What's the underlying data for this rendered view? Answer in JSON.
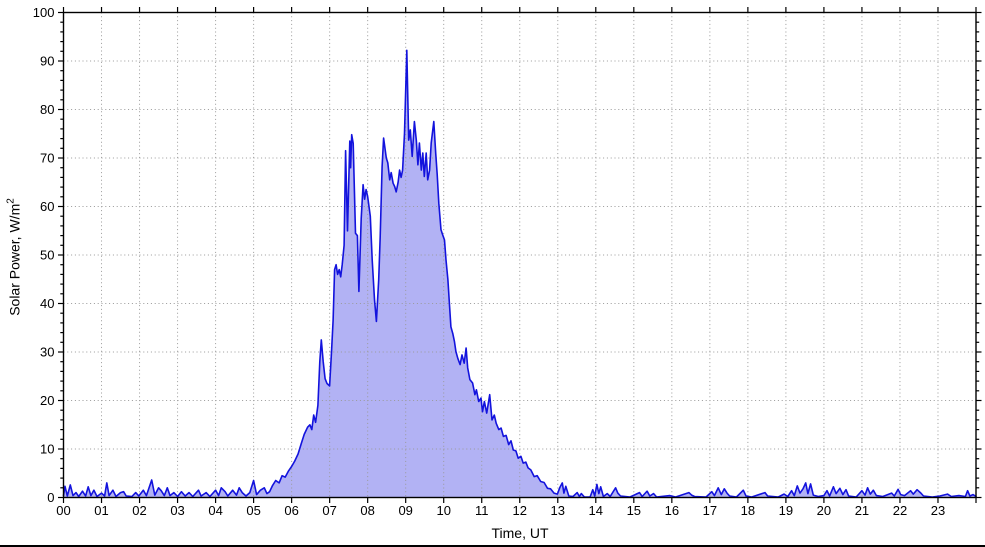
{
  "page": {
    "background_color": "#ffffff",
    "bottom_edge_line_color": "#000000"
  },
  "chart_data": {
    "type": "area",
    "title": "",
    "xlabel": "Time, UT",
    "ylabel": "Solar Power, W/m²",
    "ylabel_parts": {
      "base": "Solar Power, W/m",
      "sup": "2"
    },
    "xlim": [
      0,
      24
    ],
    "ylim": [
      0,
      100
    ],
    "x_tick_values": [
      0,
      1,
      2,
      3,
      4,
      5,
      6,
      7,
      8,
      9,
      10,
      11,
      12,
      13,
      14,
      15,
      16,
      17,
      18,
      19,
      20,
      21,
      22,
      23
    ],
    "x_tick_labels": [
      "00",
      "01",
      "02",
      "03",
      "04",
      "05",
      "06",
      "07",
      "08",
      "09",
      "10",
      "11",
      "12",
      "13",
      "14",
      "15",
      "16",
      "17",
      "18",
      "19",
      "20",
      "21",
      "22",
      "23"
    ],
    "y_tick_values": [
      0,
      10,
      20,
      30,
      40,
      50,
      60,
      70,
      80,
      90,
      100
    ],
    "y_tick_labels": [
      "0",
      "10",
      "20",
      "30",
      "40",
      "50",
      "60",
      "70",
      "80",
      "90",
      "100"
    ],
    "y_minor_step": 2,
    "grid": {
      "style": "dotted",
      "major_only": true,
      "color": "#9a9a9a"
    },
    "legend": "none",
    "line_color": "#1313dd",
    "fill_color": "#b2b2f4",
    "axis_color": "#000000",
    "series": [
      {
        "name": "solar power, W/m2",
        "points": [
          [
            0.0,
            0.4
          ],
          [
            0.04,
            2.3
          ],
          [
            0.1,
            0.3
          ],
          [
            0.18,
            2.6
          ],
          [
            0.25,
            0.4
          ],
          [
            0.33,
            1.0
          ],
          [
            0.4,
            0.2
          ],
          [
            0.5,
            1.3
          ],
          [
            0.58,
            0.3
          ],
          [
            0.65,
            2.2
          ],
          [
            0.72,
            0.4
          ],
          [
            0.8,
            1.5
          ],
          [
            0.88,
            0.2
          ],
          [
            1.0,
            0.9
          ],
          [
            1.08,
            0.3
          ],
          [
            1.14,
            3.0
          ],
          [
            1.2,
            0.4
          ],
          [
            1.3,
            1.5
          ],
          [
            1.38,
            0.2
          ],
          [
            1.5,
            1.0
          ],
          [
            1.58,
            1.2
          ],
          [
            1.65,
            0.3
          ],
          [
            1.8,
            0.2
          ],
          [
            1.9,
            1.0
          ],
          [
            1.98,
            0.3
          ],
          [
            2.1,
            1.5
          ],
          [
            2.18,
            0.4
          ],
          [
            2.32,
            3.6
          ],
          [
            2.4,
            0.5
          ],
          [
            2.5,
            2.0
          ],
          [
            2.57,
            1.4
          ],
          [
            2.65,
            0.4
          ],
          [
            2.73,
            2.0
          ],
          [
            2.8,
            0.4
          ],
          [
            2.9,
            1.0
          ],
          [
            3.0,
            0.2
          ],
          [
            3.1,
            1.2
          ],
          [
            3.2,
            0.3
          ],
          [
            3.3,
            1.0
          ],
          [
            3.4,
            0.2
          ],
          [
            3.55,
            1.5
          ],
          [
            3.62,
            0.3
          ],
          [
            3.75,
            1.0
          ],
          [
            3.85,
            0.2
          ],
          [
            4.0,
            1.5
          ],
          [
            4.08,
            0.4
          ],
          [
            4.15,
            2.0
          ],
          [
            4.25,
            1.2
          ],
          [
            4.32,
            0.3
          ],
          [
            4.45,
            1.5
          ],
          [
            4.55,
            0.5
          ],
          [
            4.62,
            2.0
          ],
          [
            4.7,
            1.0
          ],
          [
            4.8,
            0.3
          ],
          [
            4.9,
            1.0
          ],
          [
            5.0,
            3.5
          ],
          [
            5.08,
            0.6
          ],
          [
            5.18,
            1.5
          ],
          [
            5.28,
            2.0
          ],
          [
            5.35,
            0.8
          ],
          [
            5.42,
            1.2
          ],
          [
            5.5,
            2.5
          ],
          [
            5.58,
            3.5
          ],
          [
            5.67,
            3.0
          ],
          [
            5.75,
            4.5
          ],
          [
            5.83,
            4.2
          ],
          [
            5.92,
            5.5
          ],
          [
            6.0,
            6.4
          ],
          [
            6.08,
            7.5
          ],
          [
            6.17,
            9.0
          ],
          [
            6.25,
            11.0
          ],
          [
            6.33,
            13.0
          ],
          [
            6.42,
            14.5
          ],
          [
            6.48,
            15.0
          ],
          [
            6.53,
            14.0
          ],
          [
            6.58,
            17.0
          ],
          [
            6.63,
            15.5
          ],
          [
            6.69,
            19.0
          ],
          [
            6.74,
            28.0
          ],
          [
            6.78,
            32.5
          ],
          [
            6.83,
            28.0
          ],
          [
            6.88,
            24.5
          ],
          [
            6.93,
            23.5
          ],
          [
            7.0,
            23.0
          ],
          [
            7.05,
            30.0
          ],
          [
            7.09,
            36.5
          ],
          [
            7.13,
            47.0
          ],
          [
            7.17,
            48.0
          ],
          [
            7.21,
            46.0
          ],
          [
            7.25,
            47.0
          ],
          [
            7.29,
            45.5
          ],
          [
            7.33,
            48.0
          ],
          [
            7.38,
            52.0
          ],
          [
            7.42,
            71.5
          ],
          [
            7.47,
            55.0
          ],
          [
            7.53,
            73.5
          ],
          [
            7.55,
            68.0
          ],
          [
            7.58,
            74.8
          ],
          [
            7.62,
            73.0
          ],
          [
            7.68,
            54.5
          ],
          [
            7.73,
            54.0
          ],
          [
            7.77,
            42.5
          ],
          [
            7.83,
            57.5
          ],
          [
            7.88,
            64.5
          ],
          [
            7.92,
            61.5
          ],
          [
            7.96,
            63.5
          ],
          [
            8.0,
            62.0
          ],
          [
            8.07,
            58.0
          ],
          [
            8.12,
            49.0
          ],
          [
            8.18,
            40.8
          ],
          [
            8.23,
            36.3
          ],
          [
            8.29,
            44.9
          ],
          [
            8.33,
            53.8
          ],
          [
            8.38,
            68.2
          ],
          [
            8.42,
            74.1
          ],
          [
            8.49,
            70.0
          ],
          [
            8.53,
            69.0
          ],
          [
            8.58,
            65.5
          ],
          [
            8.62,
            67.0
          ],
          [
            8.67,
            64.8
          ],
          [
            8.71,
            64.1
          ],
          [
            8.75,
            63.0
          ],
          [
            8.8,
            65.0
          ],
          [
            8.84,
            67.5
          ],
          [
            8.88,
            66.0
          ],
          [
            8.92,
            67.5
          ],
          [
            8.97,
            75.1
          ],
          [
            9.03,
            92.2
          ],
          [
            9.08,
            73.7
          ],
          [
            9.12,
            75.8
          ],
          [
            9.17,
            70.3
          ],
          [
            9.23,
            77.5
          ],
          [
            9.28,
            73.7
          ],
          [
            9.32,
            68.6
          ],
          [
            9.36,
            73.1
          ],
          [
            9.41,
            67.5
          ],
          [
            9.45,
            71.0
          ],
          [
            9.49,
            66.2
          ],
          [
            9.54,
            71.0
          ],
          [
            9.58,
            65.5
          ],
          [
            9.63,
            67.5
          ],
          [
            9.67,
            73.1
          ],
          [
            9.74,
            77.5
          ],
          [
            9.79,
            71.0
          ],
          [
            9.83,
            66.6
          ],
          [
            9.87,
            60.7
          ],
          [
            9.93,
            55.2
          ],
          [
            9.97,
            54.2
          ],
          [
            10.02,
            53.1
          ],
          [
            10.06,
            49.0
          ],
          [
            10.11,
            44.9
          ],
          [
            10.15,
            40.0
          ],
          [
            10.19,
            35.2
          ],
          [
            10.24,
            33.8
          ],
          [
            10.28,
            32.2
          ],
          [
            10.32,
            30.1
          ],
          [
            10.37,
            28.7
          ],
          [
            10.43,
            27.4
          ],
          [
            10.48,
            29.4
          ],
          [
            10.54,
            27.7
          ],
          [
            10.59,
            30.8
          ],
          [
            10.63,
            26.7
          ],
          [
            10.69,
            24.3
          ],
          [
            10.76,
            23.6
          ],
          [
            10.82,
            21.2
          ],
          [
            10.86,
            22.2
          ],
          [
            10.92,
            19.8
          ],
          [
            10.98,
            20.5
          ],
          [
            11.02,
            17.7
          ],
          [
            11.07,
            19.8
          ],
          [
            11.13,
            17.4
          ],
          [
            11.21,
            21.2
          ],
          [
            11.27,
            16.0
          ],
          [
            11.33,
            17.0
          ],
          [
            11.38,
            15.3
          ],
          [
            11.45,
            14.0
          ],
          [
            11.51,
            14.3
          ],
          [
            11.57,
            12.6
          ],
          [
            11.64,
            12.8
          ],
          [
            11.71,
            10.9
          ],
          [
            11.77,
            11.7
          ],
          [
            11.83,
            9.8
          ],
          [
            11.9,
            9.6
          ],
          [
            11.96,
            8.1
          ],
          [
            12.03,
            8.5
          ],
          [
            12.09,
            7.1
          ],
          [
            12.16,
            7.3
          ],
          [
            12.22,
            6.1
          ],
          [
            12.29,
            5.7
          ],
          [
            12.38,
            4.3
          ],
          [
            12.46,
            4.5
          ],
          [
            12.55,
            3.3
          ],
          [
            12.64,
            3.1
          ],
          [
            12.73,
            1.9
          ],
          [
            12.81,
            1.8
          ],
          [
            12.9,
            0.9
          ],
          [
            12.99,
            0.7
          ],
          [
            13.05,
            2.0
          ],
          [
            13.12,
            3.0
          ],
          [
            13.16,
            0.9
          ],
          [
            13.21,
            2.3
          ],
          [
            13.29,
            0.3
          ],
          [
            13.4,
            0.2
          ],
          [
            13.51,
            1.0
          ],
          [
            13.57,
            0.2
          ],
          [
            13.62,
            0.8
          ],
          [
            13.7,
            0.1
          ],
          [
            13.85,
            0.1
          ],
          [
            13.92,
            1.6
          ],
          [
            13.97,
            0.3
          ],
          [
            14.03,
            2.7
          ],
          [
            14.08,
            0.8
          ],
          [
            14.13,
            2.2
          ],
          [
            14.2,
            0.2
          ],
          [
            14.3,
            0.8
          ],
          [
            14.38,
            0.2
          ],
          [
            14.52,
            2.0
          ],
          [
            14.58,
            0.9
          ],
          [
            14.65,
            0.3
          ],
          [
            14.9,
            0.1
          ],
          [
            15.15,
            1.0
          ],
          [
            15.22,
            0.2
          ],
          [
            15.35,
            1.3
          ],
          [
            15.42,
            0.3
          ],
          [
            15.52,
            0.8
          ],
          [
            15.6,
            0.1
          ],
          [
            15.95,
            0.4
          ],
          [
            16.1,
            0.1
          ],
          [
            16.45,
            1.0
          ],
          [
            16.52,
            0.5
          ],
          [
            16.6,
            0.2
          ],
          [
            16.9,
            0.1
          ],
          [
            17.05,
            1.2
          ],
          [
            17.12,
            0.4
          ],
          [
            17.22,
            2.0
          ],
          [
            17.3,
            0.6
          ],
          [
            17.38,
            1.8
          ],
          [
            17.45,
            0.9
          ],
          [
            17.52,
            0.3
          ],
          [
            17.7,
            0.1
          ],
          [
            17.88,
            1.5
          ],
          [
            17.95,
            0.3
          ],
          [
            18.1,
            0.1
          ],
          [
            18.45,
            1.0
          ],
          [
            18.52,
            0.3
          ],
          [
            18.8,
            0.1
          ],
          [
            18.95,
            0.7
          ],
          [
            19.05,
            0.2
          ],
          [
            19.15,
            1.4
          ],
          [
            19.22,
            0.4
          ],
          [
            19.3,
            2.4
          ],
          [
            19.37,
            0.9
          ],
          [
            19.45,
            1.8
          ],
          [
            19.52,
            3.0
          ],
          [
            19.58,
            0.8
          ],
          [
            19.65,
            2.8
          ],
          [
            19.72,
            0.5
          ],
          [
            19.85,
            0.2
          ],
          [
            20.0,
            0.4
          ],
          [
            20.08,
            1.4
          ],
          [
            20.15,
            0.3
          ],
          [
            20.25,
            2.2
          ],
          [
            20.32,
            0.8
          ],
          [
            20.42,
            1.9
          ],
          [
            20.5,
            0.6
          ],
          [
            20.58,
            1.6
          ],
          [
            20.65,
            0.3
          ],
          [
            20.85,
            0.1
          ],
          [
            21.0,
            1.4
          ],
          [
            21.08,
            0.5
          ],
          [
            21.15,
            2.0
          ],
          [
            21.22,
            0.7
          ],
          [
            21.3,
            1.5
          ],
          [
            21.38,
            0.4
          ],
          [
            21.55,
            0.2
          ],
          [
            21.78,
            0.9
          ],
          [
            21.85,
            0.3
          ],
          [
            21.95,
            1.7
          ],
          [
            22.02,
            0.6
          ],
          [
            22.12,
            0.4
          ],
          [
            22.28,
            1.4
          ],
          [
            22.35,
            0.7
          ],
          [
            22.45,
            1.6
          ],
          [
            22.55,
            0.9
          ],
          [
            22.62,
            0.3
          ],
          [
            22.85,
            0.1
          ],
          [
            23.05,
            0.3
          ],
          [
            23.25,
            0.7
          ],
          [
            23.35,
            0.2
          ],
          [
            23.55,
            0.4
          ],
          [
            23.72,
            0.2
          ],
          [
            23.78,
            1.4
          ],
          [
            23.84,
            0.3
          ],
          [
            23.92,
            0.6
          ],
          [
            24.0,
            0.2
          ]
        ]
      }
    ]
  }
}
